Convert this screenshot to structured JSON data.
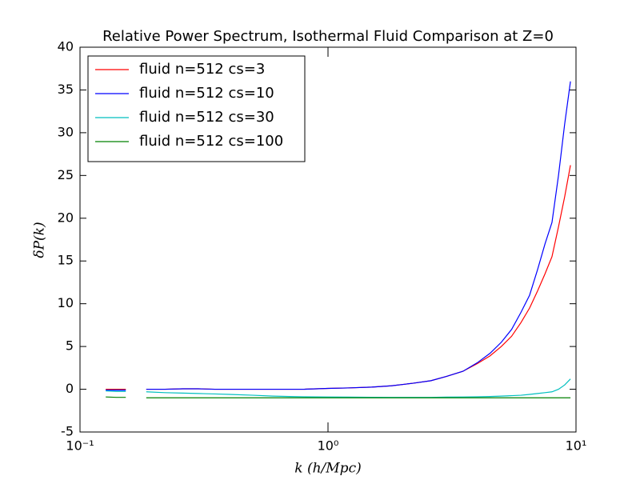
{
  "chart_data": {
    "type": "line",
    "title": "Relative Power Spectrum, Isothermal Fluid Comparison at Z=0",
    "x_label": "k (h/Mpc)",
    "y_label": "δP(k)",
    "xscale": "log",
    "grid": false,
    "legend": "upper left",
    "xlim": [
      0.1,
      10
    ],
    "xticks": [
      {
        "value": 0.1,
        "label": "10⁻¹"
      },
      {
        "value": 1,
        "label": "10⁰"
      },
      {
        "value": 10,
        "label": "10¹"
      }
    ],
    "ylim": [
      -5,
      40
    ],
    "yticks": [
      -5,
      0,
      5,
      10,
      15,
      20,
      25,
      30,
      35,
      40
    ],
    "x": [
      0.127,
      0.14,
      0.153,
      0.17,
      0.185,
      0.22,
      0.26,
      0.3,
      0.35,
      0.4,
      0.5,
      0.6,
      0.7,
      0.8,
      1.0,
      1.2,
      1.5,
      1.8,
      2.2,
      2.6,
      3.0,
      3.5,
      4.0,
      4.5,
      5.0,
      5.5,
      6.0,
      6.5,
      7.0,
      7.5,
      8.0,
      8.5,
      9.0,
      9.5
    ],
    "series": [
      {
        "name": "fluid n=512 cs=3",
        "color": "#ff0000",
        "values": [
          0,
          0,
          0,
          null,
          0,
          0,
          0.05,
          0.05,
          0,
          0,
          0,
          0,
          0,
          0,
          0.1,
          0.15,
          0.25,
          0.4,
          0.7,
          1.0,
          1.5,
          2.1,
          3.0,
          3.9,
          5.0,
          6.2,
          7.8,
          9.5,
          11.5,
          13.5,
          15.5,
          19,
          22.5,
          26.2
        ]
      },
      {
        "name": "fluid n=512 cs=10",
        "color": "#0000ff",
        "values": [
          -0.1,
          -0.1,
          -0.1,
          null,
          0,
          0,
          0.05,
          0.05,
          0,
          0,
          0,
          0,
          0,
          0,
          0.1,
          0.15,
          0.25,
          0.4,
          0.7,
          1.0,
          1.5,
          2.1,
          3.1,
          4.2,
          5.5,
          7.0,
          9.0,
          11.0,
          14.0,
          17.0,
          19.5,
          25,
          31,
          36
        ]
      },
      {
        "name": "fluid n=512 cs=30",
        "color": "#00bfbf",
        "values": [
          -0.2,
          -0.25,
          -0.25,
          null,
          -0.3,
          -0.4,
          -0.45,
          -0.5,
          -0.55,
          -0.6,
          -0.7,
          -0.8,
          -0.85,
          -0.88,
          -0.9,
          -0.92,
          -0.94,
          -0.95,
          -0.95,
          -0.95,
          -0.92,
          -0.9,
          -0.88,
          -0.85,
          -0.8,
          -0.75,
          -0.7,
          -0.6,
          -0.5,
          -0.4,
          -0.3,
          0.0,
          0.5,
          1.2
        ]
      },
      {
        "name": "fluid n=512 cs=100",
        "color": "#008000",
        "values": [
          -0.9,
          -0.95,
          -0.95,
          null,
          -1,
          -1,
          -1,
          -1,
          -1,
          -1,
          -1,
          -1,
          -1,
          -1,
          -1,
          -1,
          -1,
          -1,
          -1,
          -1,
          -1,
          -1,
          -1,
          -1,
          -1,
          -1,
          -1,
          -1,
          -1,
          -1,
          -1,
          -1,
          -1,
          -1
        ]
      }
    ]
  }
}
